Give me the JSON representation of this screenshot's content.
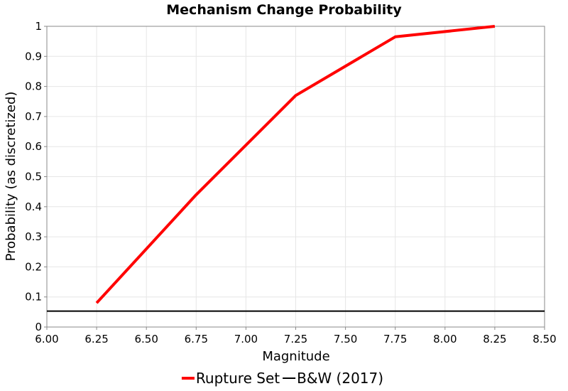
{
  "chart_data": {
    "type": "line",
    "title": "Mechanism Change Probability",
    "xlabel": "Magnitude",
    "ylabel": "Probability (as discretized)",
    "xlim": [
      6.0,
      8.5
    ],
    "ylim": [
      0,
      1
    ],
    "xticks": [
      "6.00",
      "6.25",
      "6.50",
      "6.75",
      "7.00",
      "7.25",
      "7.50",
      "7.75",
      "8.00",
      "8.25",
      "8.50"
    ],
    "yticks": [
      "0",
      "0.1",
      "0.2",
      "0.3",
      "0.4",
      "0.5",
      "0.6",
      "0.7",
      "0.8",
      "0.9",
      "1"
    ],
    "grid": true,
    "legend": "bottom",
    "series": [
      {
        "name": "Rupture Set",
        "color": "#ff0000",
        "x": [
          6.25,
          6.75,
          7.25,
          7.75,
          8.25
        ],
        "y": [
          0.08,
          0.44,
          0.77,
          0.965,
          1.0
        ]
      },
      {
        "name": "B&W (2017)",
        "color": "#000000",
        "x": [
          6.0,
          8.5
        ],
        "y": [
          0.053,
          0.053
        ]
      }
    ]
  }
}
